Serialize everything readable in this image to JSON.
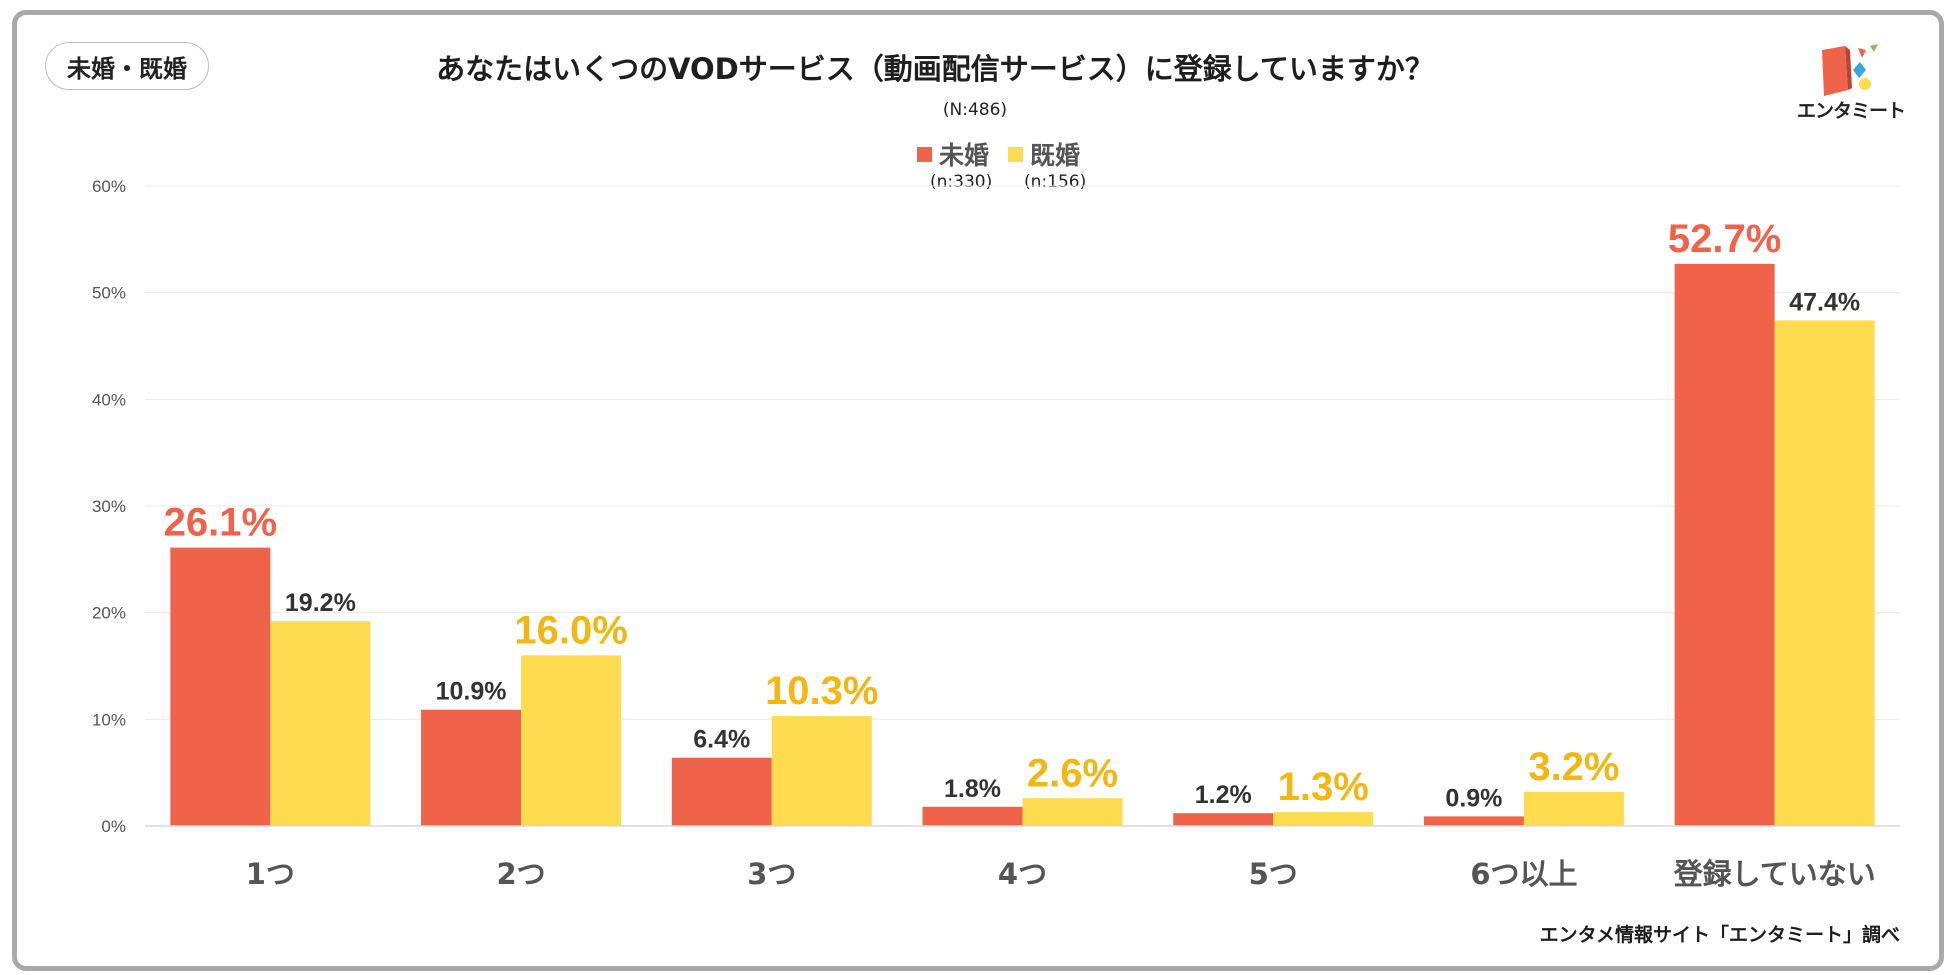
{
  "tag_label": "未婚・既婚",
  "logo": {
    "text": "エンタミート"
  },
  "source": "エンタメ情報サイト「エンタミート」調べ",
  "colors": {
    "unmarried": "#ee634a",
    "married": "#ffdb4f",
    "highlight_married": "#f2b713",
    "axis_text": "#555555",
    "grid": "#e9e9e9"
  },
  "chart_data": {
    "type": "bar",
    "title": "あなたはいくつのVODサービス（動画配信サービス）に登録していますか？",
    "total_n": "(N:486)",
    "categories": [
      "1つ",
      "2つ",
      "3つ",
      "4つ",
      "5つ",
      "6つ以上",
      "登録していない"
    ],
    "series": [
      {
        "name": "未婚",
        "n_label": "(n:330)",
        "values": [
          26.1,
          10.9,
          6.4,
          1.8,
          1.2,
          0.9,
          52.7
        ],
        "labels": [
          "26.1%",
          "10.9%",
          "6.4%",
          "1.8%",
          "1.2%",
          "0.9%",
          "52.7%"
        ],
        "highlight": [
          true,
          false,
          false,
          false,
          false,
          false,
          true
        ]
      },
      {
        "name": "既婚",
        "n_label": "(n:156)",
        "values": [
          19.2,
          16.0,
          10.3,
          2.6,
          1.3,
          3.2,
          47.4
        ],
        "labels": [
          "19.2%",
          "16.0%",
          "10.3%",
          "2.6%",
          "1.3%",
          "3.2%",
          "47.4%"
        ],
        "highlight": [
          false,
          true,
          true,
          true,
          true,
          true,
          false
        ]
      }
    ],
    "yticks": [
      "0%",
      "10%",
      "20%",
      "30%",
      "40%",
      "50%",
      "60%"
    ],
    "ylim": [
      0,
      60
    ],
    "xlabel": "",
    "ylabel": "",
    "grid": true,
    "legend": "top-center"
  }
}
